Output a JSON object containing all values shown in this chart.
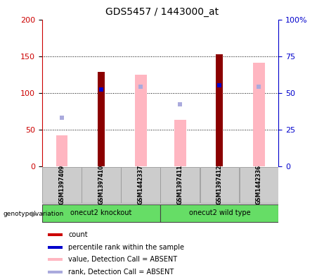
{
  "title": "GDS5457 / 1443000_at",
  "samples": [
    "GSM1397409",
    "GSM1397410",
    "GSM1442337",
    "GSM1397411",
    "GSM1397412",
    "GSM1442336"
  ],
  "count_values": [
    0,
    128,
    0,
    0,
    152,
    0
  ],
  "rank_pct_values": [
    0,
    52,
    0,
    0,
    55,
    0
  ],
  "absent_value_bars": [
    42,
    0,
    125,
    63,
    0,
    141
  ],
  "absent_rank_pct": [
    33,
    0,
    54,
    42,
    0,
    54
  ],
  "has_dark_red_bar": [
    false,
    true,
    false,
    false,
    true,
    false
  ],
  "has_blue_dot": [
    false,
    true,
    false,
    false,
    true,
    false
  ],
  "has_absent_pink": [
    true,
    false,
    true,
    true,
    false,
    true
  ],
  "has_absent_rank": [
    true,
    false,
    true,
    true,
    false,
    true
  ],
  "ylim_left": [
    0,
    200
  ],
  "yticks_left": [
    0,
    50,
    100,
    150,
    200
  ],
  "yticks_right": [
    0,
    25,
    50,
    75,
    100
  ],
  "ytick_labels_right": [
    "0",
    "25",
    "50",
    "75",
    "100%"
  ],
  "dotted_lines": [
    50,
    100,
    150
  ],
  "dark_red": "#8B0000",
  "pink": "#FFB6C1",
  "blue_dot": "#0000CC",
  "light_blue": "#AAAADD",
  "green": "#66DD66",
  "gray_box": "#CCCCCC",
  "group_labels": [
    "onecut2 knockout",
    "onecut2 wild type"
  ],
  "legend_items": [
    {
      "color": "#CC0000",
      "label": "count"
    },
    {
      "color": "#0000CC",
      "label": "percentile rank within the sample"
    },
    {
      "color": "#FFB6C1",
      "label": "value, Detection Call = ABSENT"
    },
    {
      "color": "#AAAADD",
      "label": "rank, Detection Call = ABSENT"
    }
  ],
  "left_axis_color": "#CC0000",
  "right_axis_color": "#0000CC",
  "genotype_label": "genotype/variation"
}
